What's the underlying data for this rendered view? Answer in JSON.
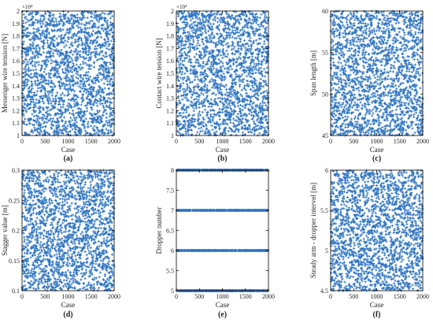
{
  "colors": {
    "marker": "#2f75c0",
    "axis": "#000000"
  },
  "chart_data": [
    {
      "id": "a",
      "type": "scatter",
      "panel_label": "(a)",
      "xlabel": "Case",
      "ylabel": "Messenger wire tension [N]",
      "ylim": [
        1,
        2
      ],
      "y_exponent": "×10⁴",
      "yticks": [
        1,
        1.1,
        1.2,
        1.3,
        1.4,
        1.5,
        1.6,
        1.7,
        1.8,
        1.9,
        2
      ],
      "yticklabels": [
        "1",
        "1.1",
        "1.2",
        "1.3",
        "1.4",
        "1.5",
        "1.6",
        "1.7",
        "1.8",
        "1.9",
        "2"
      ],
      "xlim": [
        0,
        2000
      ],
      "xticks": [
        0,
        500,
        1000,
        1500,
        2000
      ],
      "xticklabels": [
        "0",
        "500",
        "1000",
        "1500",
        "2000"
      ],
      "n_cases": 2000,
      "distribution": "uniform random",
      "values": []
    },
    {
      "id": "b",
      "type": "scatter",
      "panel_label": "(b)",
      "xlabel": "Case",
      "ylabel": "Contact wire tension [N]",
      "ylim": [
        1,
        2
      ],
      "y_exponent": "×10⁴",
      "yticks": [
        1,
        1.1,
        1.2,
        1.3,
        1.4,
        1.5,
        1.6,
        1.7,
        1.8,
        1.9,
        2
      ],
      "yticklabels": [
        "1",
        "1.1",
        "1.2",
        "1.3",
        "1.4",
        "1.5",
        "1.6",
        "1.7",
        "1.8",
        "1.9",
        "2"
      ],
      "xlim": [
        0,
        2000
      ],
      "xticks": [
        0,
        500,
        1000,
        1500,
        2000
      ],
      "xticklabels": [
        "0",
        "500",
        "1000",
        "1500",
        "2000"
      ],
      "n_cases": 2000,
      "distribution": "uniform random",
      "values": []
    },
    {
      "id": "c",
      "type": "scatter",
      "panel_label": "(c)",
      "xlabel": "Case",
      "ylabel": "Span length [m]",
      "ylim": [
        45,
        60
      ],
      "y_exponent": "",
      "yticks": [
        45,
        50,
        55,
        60
      ],
      "yticklabels": [
        "45",
        "50",
        "55",
        "60"
      ],
      "xlim": [
        0,
        2000
      ],
      "xticks": [
        0,
        500,
        1000,
        1500,
        2000
      ],
      "xticklabels": [
        "0",
        "500",
        "1000",
        "1500",
        "2000"
      ],
      "n_cases": 2000,
      "distribution": "uniform random",
      "values": []
    },
    {
      "id": "d",
      "type": "scatter",
      "panel_label": "(d)",
      "xlabel": "Case",
      "ylabel": "Stagger value [m]",
      "ylim": [
        0.1,
        0.3
      ],
      "y_exponent": "",
      "yticks": [
        0.1,
        0.15,
        0.2,
        0.25,
        0.3
      ],
      "yticklabels": [
        "0.1",
        "0.15",
        "0.2",
        "0.25",
        "0.3"
      ],
      "xlim": [
        0,
        2000
      ],
      "xticks": [
        0,
        500,
        1000,
        1500,
        2000
      ],
      "xticklabels": [
        "0",
        "500",
        "1000",
        "1500",
        "2000"
      ],
      "n_cases": 2000,
      "distribution": "uniform random",
      "values": []
    },
    {
      "id": "e",
      "type": "scatter",
      "panel_label": "(e)",
      "xlabel": "Case",
      "ylabel": "Dropper number",
      "ylim": [
        5,
        8
      ],
      "y_exponent": "",
      "yticks": [
        5,
        5.5,
        6,
        6.5,
        7,
        7.5,
        8
      ],
      "yticklabels": [
        "5",
        "5.5",
        "6",
        "6.5",
        "7",
        "7.5",
        "8"
      ],
      "xlim": [
        0,
        2000
      ],
      "xticks": [
        0,
        500,
        1000,
        1500,
        2000
      ],
      "xticklabels": [
        "0",
        "500",
        "1000",
        "1500",
        "2000"
      ],
      "n_cases": 2000,
      "distribution": "discrete",
      "discrete_values": [
        5,
        6,
        7,
        8
      ],
      "values": []
    },
    {
      "id": "f",
      "type": "scatter",
      "panel_label": "(f)",
      "xlabel": "Case",
      "ylabel": "Steady arm - dropper intervel [m]",
      "ylim": [
        4.5,
        6
      ],
      "y_exponent": "",
      "yticks": [
        4.5,
        5,
        5.5,
        6
      ],
      "yticklabels": [
        "4.5",
        "5",
        "5.5",
        "6"
      ],
      "xlim": [
        0,
        2000
      ],
      "xticks": [
        0,
        500,
        1000,
        1500,
        2000
      ],
      "xticklabels": [
        "0",
        "500",
        "1000",
        "1500",
        "2000"
      ],
      "n_cases": 2000,
      "distribution": "uniform random",
      "values": []
    }
  ]
}
